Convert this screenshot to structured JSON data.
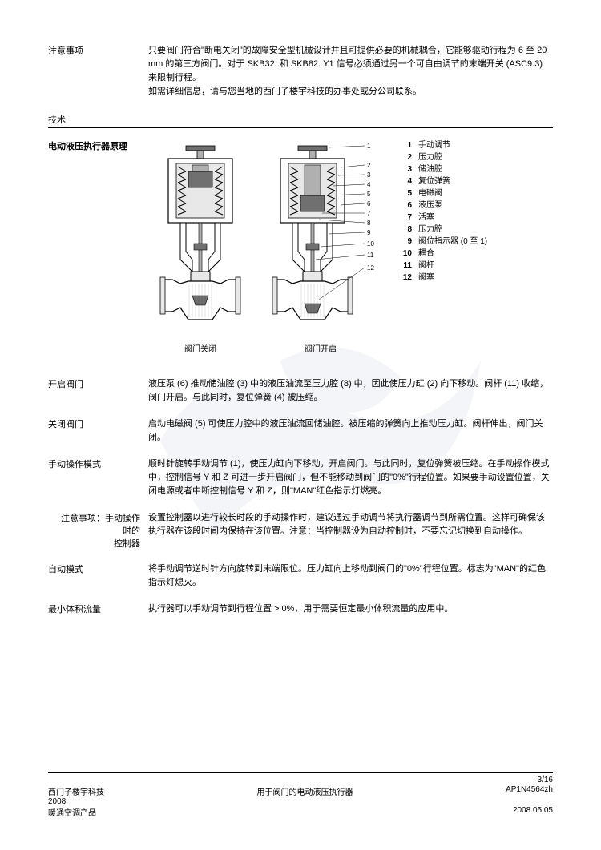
{
  "notice": {
    "label": "注意事项",
    "text": "只要阀门符合\"断电关闭\"的故障安全型机械设计并且可提供必要的机械耦合，它能够驱动行程为 6 至 20 mm 的第三方阀门。对于 SKB32..和 SKB82..Y1 信号必须通过另一个可自由调节的末端开关 (ASC9.3) 来限制行程。\n如需详细信息，请与您当地的西门子楼宇科技的办事处或分公司联系。"
  },
  "tech_header": "技术",
  "principle_label": "电动液压执行器原理",
  "diagram": {
    "closed_caption": "阀门关闭",
    "open_caption": "阀门开启",
    "legend": [
      {
        "n": "1",
        "t": "手动调节"
      },
      {
        "n": "2",
        "t": "压力腔"
      },
      {
        "n": "3",
        "t": "储油腔"
      },
      {
        "n": "4",
        "t": "复位弹簧"
      },
      {
        "n": "5",
        "t": "电磁阀"
      },
      {
        "n": "6",
        "t": "液压泵"
      },
      {
        "n": "7",
        "t": "活塞"
      },
      {
        "n": "8",
        "t": "压力腔"
      },
      {
        "n": "9",
        "t": "阀位指示器 (0 至 1)"
      },
      {
        "n": "10",
        "t": "耦合"
      },
      {
        "n": "11",
        "t": "阀杆"
      },
      {
        "n": "12",
        "t": "阀塞"
      }
    ],
    "callouts": [
      "1",
      "2",
      "3",
      "4",
      "5",
      "6",
      "7",
      "8",
      "9",
      "10",
      "11",
      "12"
    ],
    "colors": {
      "stroke": "#000000",
      "fill_light": "#e8e8e8",
      "fill_mid": "#b0b0b0",
      "fill_dark": "#707070"
    }
  },
  "sections": [
    {
      "label": "开启阀门",
      "text": "液压泵 (6) 推动储油腔 (3) 中的液压油流至压力腔 (8) 中，因此使压力缸 (2) 向下移动。阀杆 (11) 收缩，阀门开启。与此同时，复位弹簧 (4) 被压缩。"
    },
    {
      "label": "关闭阀门",
      "text": "启动电磁阀 (5) 可使压力腔中的液压油流回储油腔。被压缩的弹簧向上推动压力缸。阀杆伸出，阀门关闭。"
    },
    {
      "label": "手动操作模式",
      "text": "顺时针旋转手动调节 (1)，使压力缸向下移动，开启阀门。与此同时，复位弹簧被压缩。在手动操作模式中，控制信号 Y 和 Z 可进一步开启阀门，但不能移动到阀门的\"0%\"行程位置。如果要手动设置位置，关闭电源或者中断控制信号 Y 和 Z，则\"MAN\"红色指示灯燃亮。"
    },
    {
      "label": "注意事项：手动操作时的控制器",
      "text": "设置控制器以进行较长时段的手动操作时，建议通过手动调节将执行器调节到所需位置。这样可确保该执行器在该段时间内保持在该位置。注意：当控制器设为自动控制时，不要忘记切换到自动操作。",
      "indent": true
    },
    {
      "label": "自动模式",
      "text": "将手动调节逆时针方向旋转到末端限位。压力缸向上移动到阀门的\"0%\"行程位置。标志为\"MAN\"的红色指示灯熄灭。"
    },
    {
      "label": "最小体积流量",
      "text": "执行器可以手动调节到行程位置 > 0%，用于需要恒定最小体积流量的应用中。"
    }
  ],
  "footer": {
    "page": "3/16",
    "left1": "西门子楼宇科技",
    "center": "用于阀门的电动液压执行器",
    "right1": "AP1N4564zh",
    "left2": "2008",
    "left3": "暖通空调产品",
    "right2": "2008.05.05"
  }
}
